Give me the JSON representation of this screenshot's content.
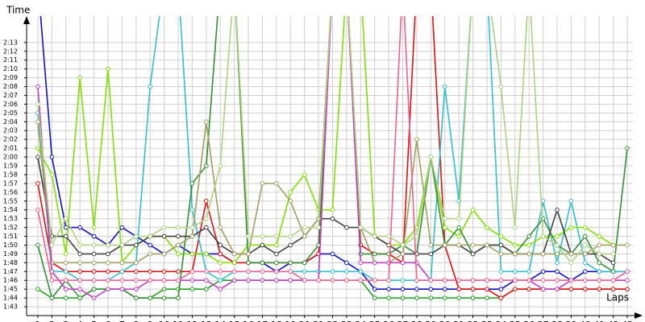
{
  "chart_data": {
    "type": "line",
    "y_label": "Time",
    "x_label": "Laps",
    "x": [
      1,
      2,
      3,
      4,
      5,
      6,
      7,
      8,
      9,
      10,
      11,
      12,
      13,
      14,
      15,
      16,
      17,
      18,
      19,
      20,
      21,
      22,
      23,
      24,
      25,
      26,
      27,
      28,
      29,
      30,
      31,
      32,
      33,
      34,
      35,
      36,
      37,
      38,
      39,
      40,
      41,
      42,
      43
    ],
    "xlim": [
      0.2,
      43.4
    ],
    "xticks": [
      1,
      2,
      3,
      4,
      5,
      6,
      7,
      8,
      9,
      10,
      11,
      12,
      13,
      14,
      15,
      16,
      17,
      18,
      19,
      20,
      21,
      22,
      23,
      24,
      25,
      26,
      27,
      28,
      29,
      30,
      31,
      32,
      33,
      34,
      35,
      36,
      37,
      38,
      39,
      40,
      41,
      42,
      43
    ],
    "ylim": [
      102,
      136
    ],
    "yticks": [
      {
        "value": 103,
        "label": "1:43"
      },
      {
        "value": 104,
        "label": "1:44"
      },
      {
        "value": 105,
        "label": "1:45"
      },
      {
        "value": 106,
        "label": "1:46"
      },
      {
        "value": 107,
        "label": "1:47"
      },
      {
        "value": 108,
        "label": "1:48"
      },
      {
        "value": 109,
        "label": "1:49"
      },
      {
        "value": 110,
        "label": "1:50"
      },
      {
        "value": 111,
        "label": "1:51"
      },
      {
        "value": 112,
        "label": "1:52"
      },
      {
        "value": 113,
        "label": "1:53"
      },
      {
        "value": 114,
        "label": "1:54"
      },
      {
        "value": 115,
        "label": "1:55"
      },
      {
        "value": 116,
        "label": "1:56"
      },
      {
        "value": 117,
        "label": "1:57"
      },
      {
        "value": 118,
        "label": "1:58"
      },
      {
        "value": 119,
        "label": "1:59"
      },
      {
        "value": 120,
        "label": "2:00"
      },
      {
        "value": 121,
        "label": "2:01"
      },
      {
        "value": 122,
        "label": "2:02"
      },
      {
        "value": 123,
        "label": "2:03"
      },
      {
        "value": 124,
        "label": "2:04"
      },
      {
        "value": 125,
        "label": "2:05"
      },
      {
        "value": 126,
        "label": "2:06"
      },
      {
        "value": 127,
        "label": "2:07"
      },
      {
        "value": 128,
        "label": "2:08"
      },
      {
        "value": 129,
        "label": "2:09"
      },
      {
        "value": 130,
        "label": "2:10"
      },
      {
        "value": 131,
        "label": "2:11"
      },
      {
        "value": 132,
        "label": "2:12"
      },
      {
        "value": 133,
        "label": "2:13"
      }
    ],
    "grid": true,
    "series": [
      {
        "color": "#1010c0",
        "values": [
          140,
          120,
          112,
          112,
          111,
          110,
          112,
          111,
          110,
          109,
          110,
          109,
          109,
          109,
          108,
          108,
          108,
          107,
          108,
          108,
          109,
          109,
          108,
          107,
          105,
          105,
          105,
          105,
          105,
          105,
          105,
          105,
          105,
          105,
          106,
          106,
          107,
          107,
          106,
          107,
          107,
          107,
          107
        ]
      },
      {
        "color": "#20a020",
        "values": [
          105,
          104,
          104,
          104,
          105,
          105,
          105,
          104,
          104,
          105,
          105,
          105,
          105,
          106,
          106,
          106,
          106,
          106,
          106,
          106,
          106,
          106,
          106,
          106,
          104,
          104,
          104,
          104,
          104,
          104,
          104,
          104,
          104,
          104,
          105,
          105,
          105,
          105,
          105,
          105,
          105,
          105,
          105
        ]
      },
      {
        "color": "#e01010",
        "values": [
          117,
          108,
          107,
          107,
          107,
          107,
          107,
          107,
          107,
          107,
          107,
          107,
          115,
          109,
          108,
          108,
          108,
          108,
          108,
          108,
          109,
          140,
          140,
          110,
          109,
          109,
          108,
          140,
          140,
          110,
          105,
          105,
          105,
          104,
          105,
          105,
          105,
          105,
          105,
          105,
          105,
          105,
          105
        ]
      },
      {
        "color": "#30c0d0",
        "values": [
          125,
          107,
          107,
          106,
          106,
          106,
          107,
          108,
          128,
          140,
          140,
          114,
          107,
          106,
          107,
          107,
          107,
          107,
          107,
          107,
          107,
          107,
          107,
          107,
          106,
          106,
          106,
          106,
          106,
          128,
          115,
          140,
          140,
          107,
          107,
          107,
          115,
          108,
          115,
          108,
          107,
          107,
          107
        ]
      },
      {
        "color": "#80e000",
        "values": [
          121,
          118,
          109,
          129,
          112,
          130,
          108,
          110,
          111,
          111,
          109,
          109,
          109,
          108,
          108,
          110,
          110,
          110,
          116,
          118,
          114,
          114,
          140,
          140,
          111,
          110,
          110,
          112,
          120,
          112,
          111,
          114,
          112,
          111,
          110,
          110,
          111,
          111,
          112,
          112,
          111,
          110,
          null
        ]
      },
      {
        "color": "#309030",
        "values": [
          110,
          104,
          106,
          104,
          105,
          105,
          105,
          104,
          104,
          104,
          104,
          117,
          119,
          140,
          140,
          108,
          108,
          108,
          108,
          108,
          110,
          140,
          140,
          109,
          109,
          109,
          110,
          109,
          120,
          110,
          112,
          109,
          110,
          110,
          109,
          111,
          113,
          110,
          109,
          111,
          108,
          107,
          121
        ]
      },
      {
        "color": "#404040",
        "values": [
          120,
          111,
          111,
          109,
          109,
          109,
          110,
          110,
          111,
          111,
          111,
          111,
          112,
          110,
          109,
          109,
          110,
          109,
          110,
          111,
          113,
          113,
          112,
          112,
          111,
          110,
          109,
          109,
          109,
          110,
          110,
          109,
          110,
          110,
          109,
          109,
          109,
          114,
          109,
          109,
          109,
          108,
          null
        ]
      },
      {
        "color": "#a0a060",
        "values": [
          124,
          108,
          108,
          108,
          108,
          108,
          108,
          108,
          109,
          109,
          110,
          111,
          124,
          112,
          109,
          109,
          117,
          117,
          115,
          111,
          113,
          140,
          140,
          112,
          108,
          108,
          109,
          122,
          110,
          110,
          110,
          110,
          110,
          109,
          109,
          109,
          109,
          109,
          109,
          109,
          110,
          110,
          110
        ]
      },
      {
        "color": "#c040c0",
        "values": [
          128,
          107,
          105,
          105,
          104,
          105,
          105,
          105,
          106,
          106,
          106,
          106,
          106,
          105,
          106,
          106,
          106,
          106,
          106,
          106,
          106,
          140,
          140,
          108,
          108,
          108,
          108,
          108,
          106,
          106,
          106,
          106,
          106,
          106,
          106,
          106,
          105,
          105,
          106,
          106,
          106,
          106,
          106
        ]
      },
      {
        "color": "#f06090",
        "values": [
          114,
          106,
          106,
          106,
          106,
          106,
          106,
          106,
          106,
          106,
          106,
          107,
          107,
          107,
          107,
          107,
          107,
          107,
          107,
          106,
          106,
          106,
          106,
          106,
          106,
          106,
          140,
          106,
          106,
          106,
          106,
          106,
          106,
          106,
          106,
          106,
          106,
          106,
          106,
          106,
          106,
          106,
          107
        ]
      },
      {
        "color": "#b0d080",
        "values": [
          126,
          110,
          113,
          110,
          110,
          110,
          110,
          111,
          111,
          112,
          112,
          112,
          113,
          119,
          140,
          111,
          111,
          111,
          111,
          112,
          112,
          140,
          140,
          112,
          111,
          111,
          110,
          111,
          120,
          113,
          113,
          140,
          140,
          128,
          112,
          140,
          111,
          110,
          108,
          110,
          109,
          109,
          null
        ]
      }
    ]
  }
}
